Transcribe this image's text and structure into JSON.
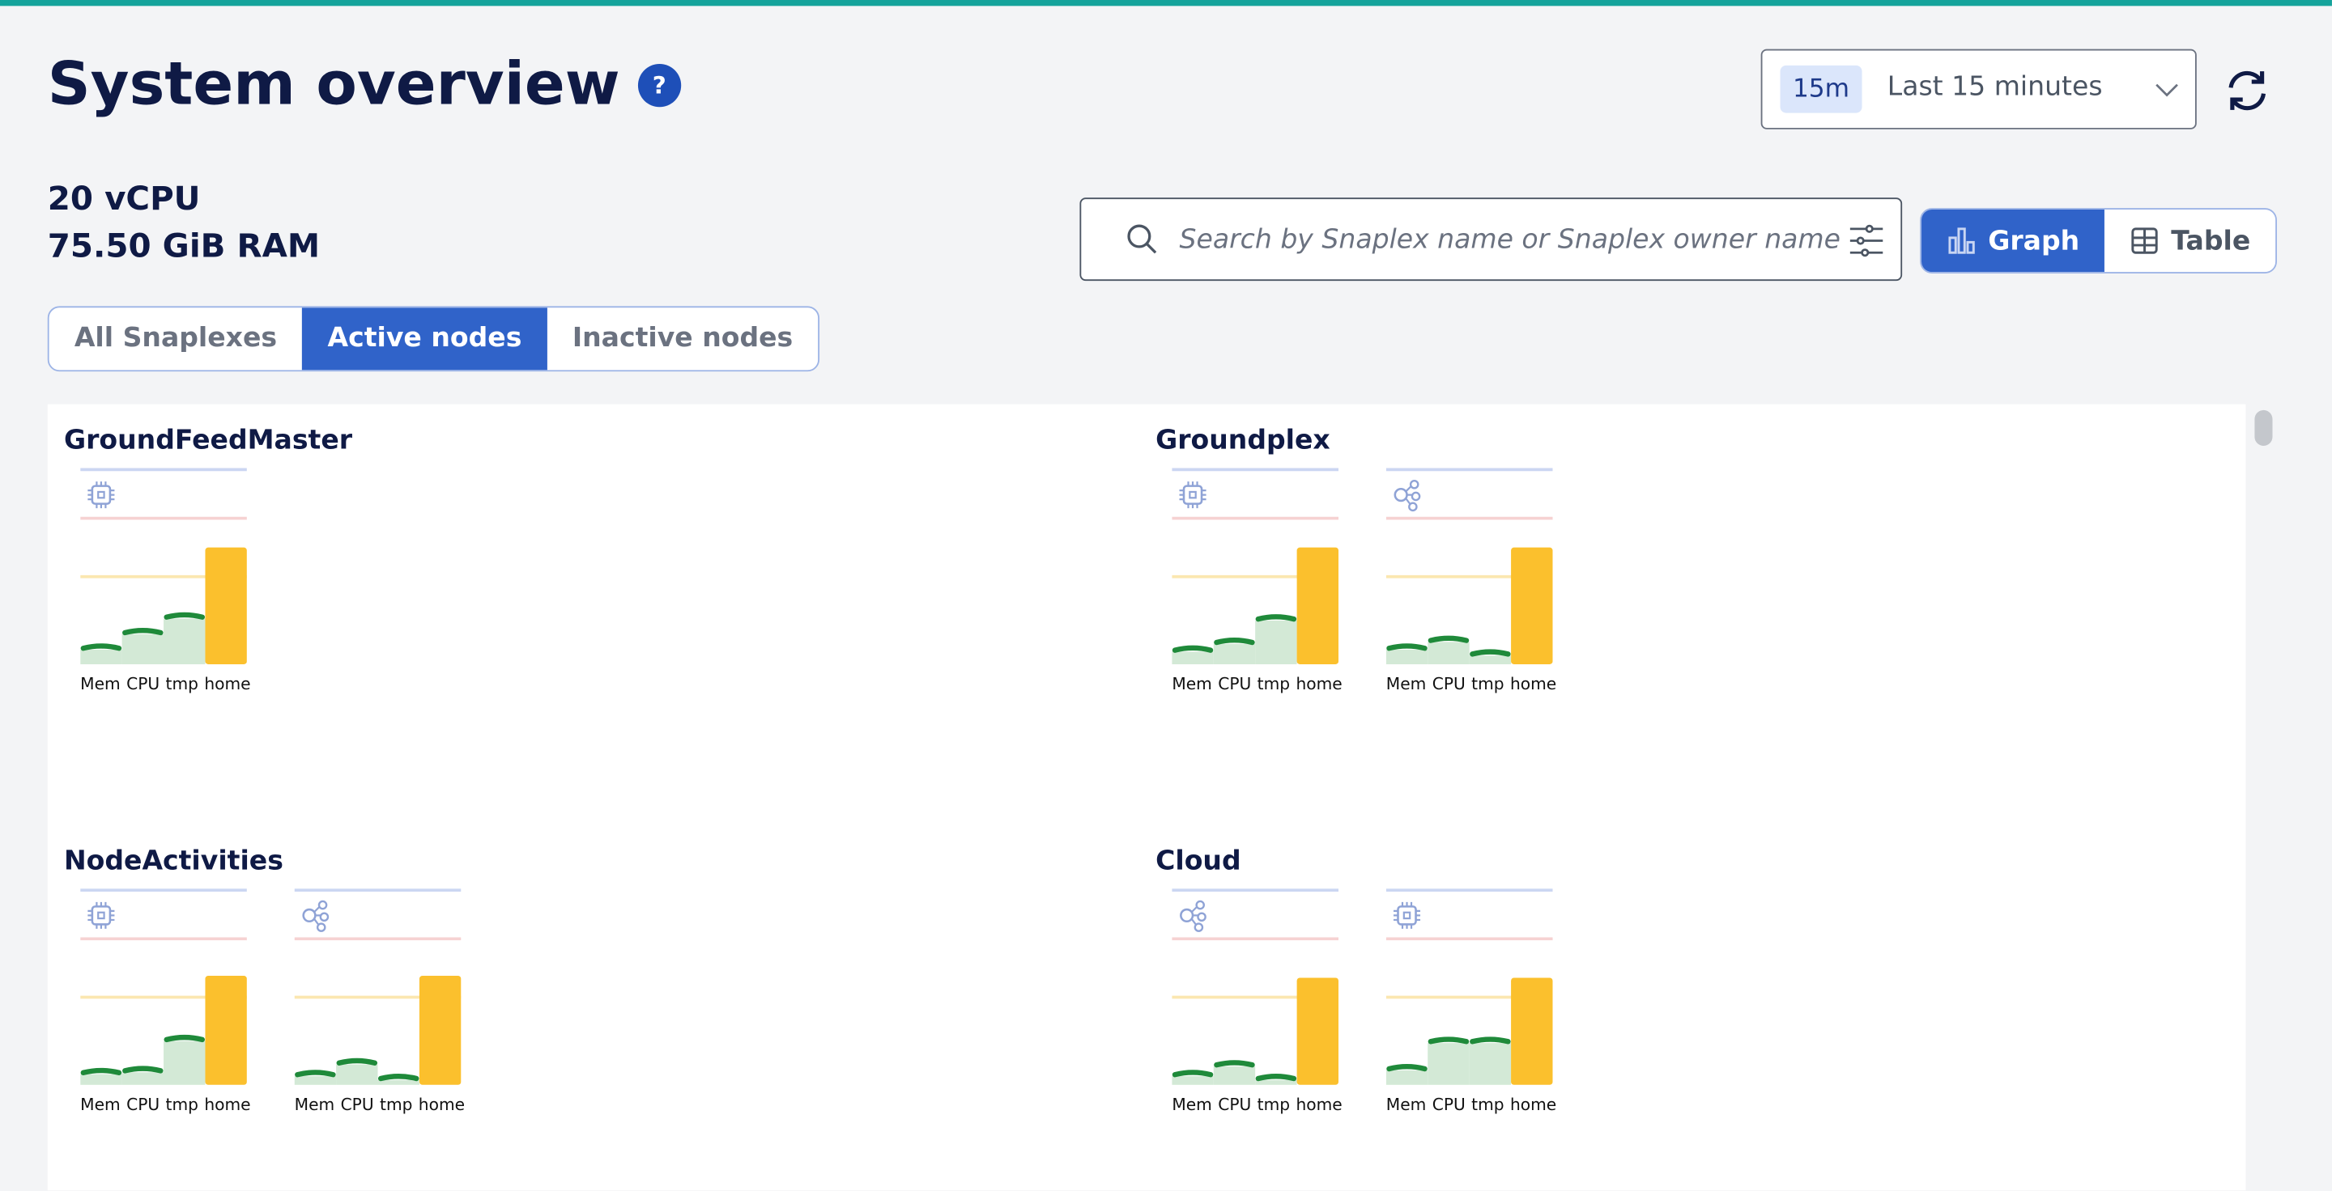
{
  "header": {
    "title": "System overview",
    "help_icon": "question-circle-icon"
  },
  "resources": {
    "vcpu": "20 vCPU",
    "ram": "75.50 GiB RAM"
  },
  "time_selector": {
    "badge": "15m",
    "label": "Last 15 minutes"
  },
  "search": {
    "placeholder": "Search by Snaplex name or Snaplex owner name"
  },
  "view_toggle": {
    "graph": "Graph",
    "table": "Table",
    "selected": "Graph"
  },
  "tabs": [
    {
      "label": "All Snaplexes"
    },
    {
      "label": "Active nodes",
      "active": true
    },
    {
      "label": "Inactive nodes"
    }
  ],
  "colors": {
    "accent": "#3063c9",
    "top_bar": "#14a39b",
    "usage_line": "#1f8a3a",
    "usage_fill": "#d3e9d6",
    "home_bar": "#fbc02d",
    "title": "#0f1a45"
  },
  "chart_data": {
    "type": "bar",
    "categories": [
      "Mem",
      "CPU",
      "tmp",
      "home"
    ],
    "unit": "percent (estimated)",
    "ylim": [
      0,
      100
    ],
    "thresholds": {
      "blue": 100,
      "red": 75,
      "yellow": 45
    },
    "groups": [
      {
        "name": "GroundFeedMaster",
        "nodes": [
          {
            "icon": "cpu-chip-icon",
            "values": [
              9,
              17,
              25,
              60
            ]
          }
        ]
      },
      {
        "name": "Groundplex",
        "nodes": [
          {
            "icon": "cpu-chip-icon",
            "values": [
              8,
              12,
              24,
              60
            ]
          },
          {
            "icon": "share-nodes-icon",
            "values": [
              9,
              13,
              6,
              60
            ]
          }
        ]
      },
      {
        "name": "NodeActivities",
        "nodes": [
          {
            "icon": "cpu-chip-icon",
            "values": [
              7,
              8,
              24,
              56
            ]
          },
          {
            "icon": "share-nodes-icon",
            "values": [
              6,
              12,
              4,
              56
            ]
          }
        ]
      },
      {
        "name": "Cloud",
        "nodes": [
          {
            "icon": "share-nodes-icon",
            "values": [
              6,
              11,
              4,
              55
            ]
          },
          {
            "icon": "cpu-chip-icon",
            "values": [
              9,
              23,
              23,
              55
            ]
          }
        ]
      }
    ]
  }
}
